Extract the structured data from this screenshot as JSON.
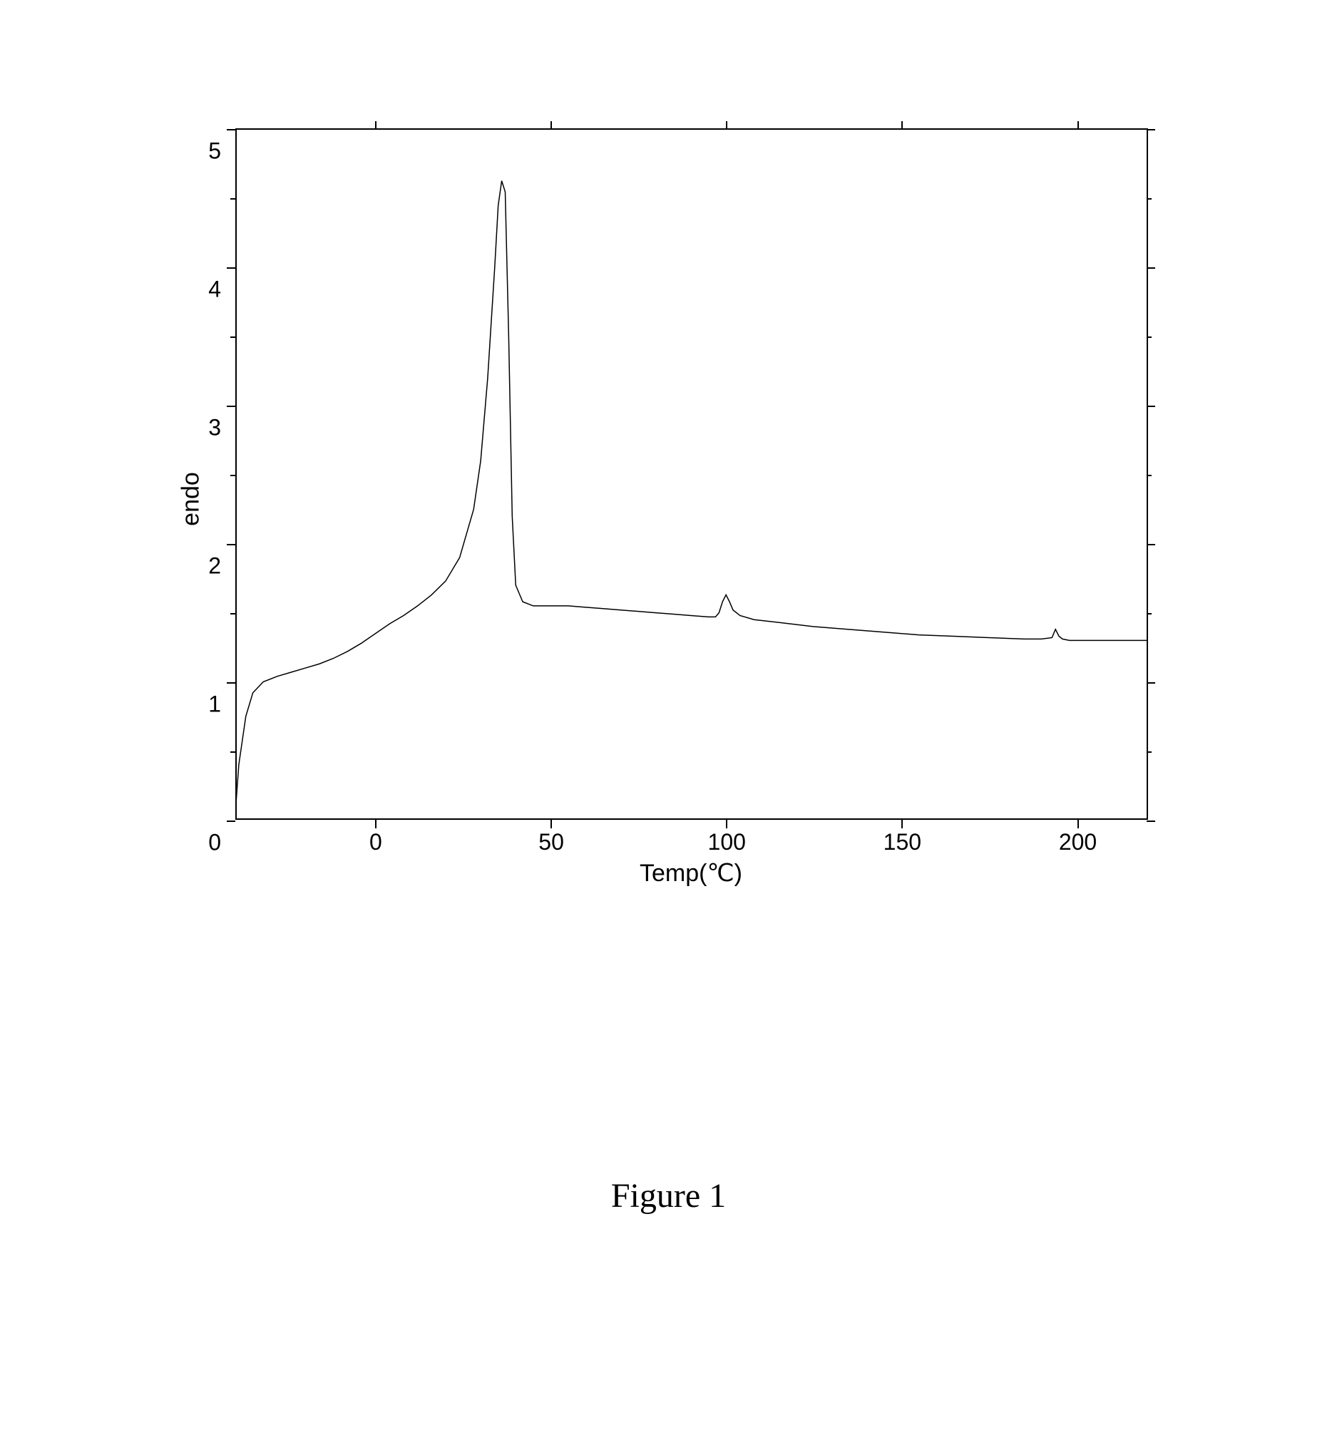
{
  "chart": {
    "type": "line",
    "title": "",
    "xlabel": "Temp(℃)",
    "ylabel": "endo",
    "label_fontsize": 34,
    "tick_fontsize": 32,
    "xlim": [
      -40,
      220
    ],
    "ylim": [
      0,
      5
    ],
    "x_ticks": [
      0,
      50,
      100,
      150,
      200
    ],
    "y_ticks": [
      0,
      1,
      2,
      3,
      4,
      5
    ],
    "y_minor_ticks": [
      0.5,
      1.5,
      2.5,
      3.5,
      4.5
    ],
    "background_color": "#ffffff",
    "axis_color": "#000000",
    "line_color": "#000000",
    "line_width": 1.5,
    "grid": false,
    "data": {
      "x": [
        -40,
        -39,
        -37,
        -35,
        -32,
        -28,
        -24,
        -20,
        -16,
        -12,
        -8,
        -4,
        0,
        4,
        8,
        12,
        16,
        20,
        24,
        28,
        30,
        32,
        34,
        35,
        36,
        37,
        38,
        39,
        40,
        42,
        45,
        50,
        55,
        60,
        65,
        70,
        75,
        80,
        85,
        90,
        95,
        97,
        98,
        99,
        100,
        101,
        102,
        104,
        108,
        115,
        125,
        135,
        145,
        155,
        165,
        175,
        185,
        190,
        193,
        194,
        195,
        196,
        198,
        205,
        215,
        220
      ],
      "y": [
        0.05,
        0.4,
        0.75,
        0.92,
        1.0,
        1.04,
        1.07,
        1.1,
        1.13,
        1.17,
        1.22,
        1.28,
        1.35,
        1.42,
        1.48,
        1.55,
        1.63,
        1.73,
        1.9,
        2.25,
        2.6,
        3.2,
        4.0,
        4.45,
        4.63,
        4.55,
        3.5,
        2.2,
        1.7,
        1.58,
        1.55,
        1.55,
        1.55,
        1.54,
        1.53,
        1.52,
        1.51,
        1.5,
        1.49,
        1.48,
        1.47,
        1.47,
        1.5,
        1.58,
        1.63,
        1.58,
        1.52,
        1.48,
        1.45,
        1.43,
        1.4,
        1.38,
        1.36,
        1.34,
        1.33,
        1.32,
        1.31,
        1.31,
        1.32,
        1.38,
        1.33,
        1.31,
        1.3,
        1.3,
        1.3,
        1.3
      ]
    },
    "x_tick_labels": {
      "0": "0",
      "50": "50",
      "100": "100",
      "150": "150",
      "200": "200"
    },
    "y_tick_labels": {
      "0": "0",
      "1": "1",
      "2": "2",
      "3": "3",
      "4": "4",
      "5": "5"
    }
  },
  "caption": "Figure 1"
}
